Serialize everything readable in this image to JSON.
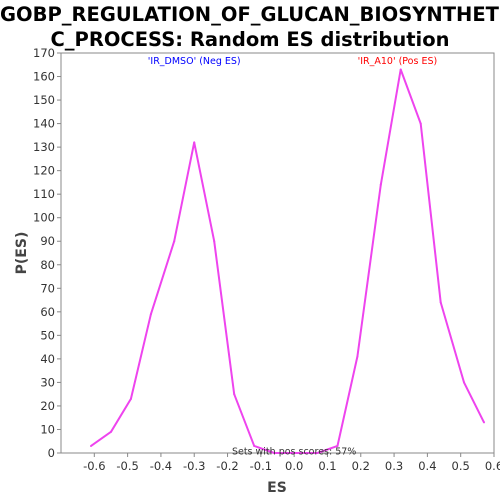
{
  "chart_data": {
    "type": "line",
    "title_lines": [
      "GOBP_REGULATION_OF_GLUCAN_BIOSYNTHETI",
      "C_PROCESS: Random ES distribution"
    ],
    "xlabel": "ES",
    "ylabel": "P(ES)",
    "xlim": [
      -0.7,
      0.6
    ],
    "ylim": [
      0,
      170
    ],
    "xticks": [
      -0.6,
      -0.5,
      -0.4,
      -0.3,
      -0.2,
      -0.1,
      0.0,
      0.1,
      0.2,
      0.3,
      0.4,
      0.5,
      0.6
    ],
    "xtick_labels": [
      "-0.6",
      "-0.5",
      "-0.4",
      "-0.3",
      "-0.2",
      "-0.1",
      "0.0",
      "0.1",
      "0.2",
      "0.3",
      "0.4",
      "0.5",
      "0.6"
    ],
    "yticks": [
      0,
      10,
      20,
      30,
      40,
      50,
      60,
      70,
      80,
      90,
      100,
      110,
      120,
      130,
      140,
      150,
      160,
      170
    ],
    "grid": false,
    "line_color": "#ee44ee",
    "series": [
      {
        "x": [
          -0.61,
          -0.55,
          -0.49,
          -0.43,
          -0.36,
          -0.3,
          -0.24,
          -0.18,
          -0.12,
          -0.06,
          0.0,
          0.07,
          0.13,
          0.19,
          0.26,
          0.32,
          0.38,
          0.44,
          0.51,
          0.57
        ],
        "y": [
          3,
          9,
          23,
          59,
          90,
          132,
          90,
          25,
          3,
          0,
          0,
          0,
          3,
          41,
          114,
          163,
          140,
          64,
          30,
          13
        ]
      }
    ],
    "annotations": [
      {
        "text": "'IR_DMSO' (Neg ES)",
        "color": "#0000ff",
        "x": -0.3,
        "y": 167
      },
      {
        "text": "'IR_A10' (Pos ES)",
        "color": "#ff0000",
        "x": 0.31,
        "y": 167
      },
      {
        "text": "Sets with pos scores: 57%",
        "color": "#333333",
        "x": 0.0,
        "y": 1
      }
    ]
  }
}
